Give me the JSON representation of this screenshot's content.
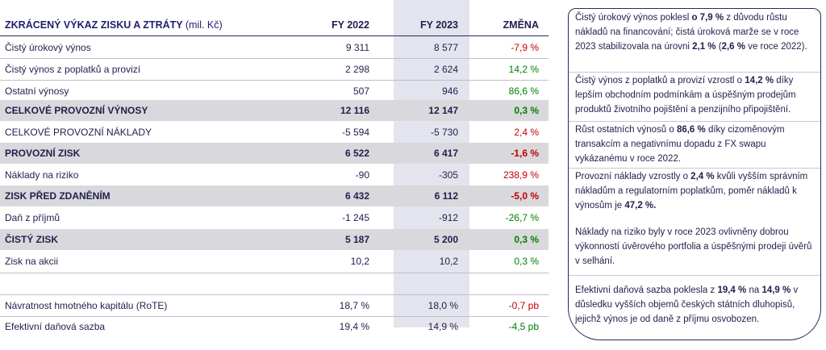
{
  "table": {
    "title": "ZKRÁCENÝ VÝKAZ ZISKU A ZTRÁTY",
    "unit": "(mil. Kč)",
    "col_fy2022": "FY 2022",
    "col_fy2023": "FY 2023",
    "col_change": "ZMĚNA",
    "rows": [
      {
        "label": "Čistý úrokový výnos",
        "fy2022": "9 311",
        "fy2023": "8 577",
        "change": "-7,9 %"
      },
      {
        "label": "Čistý výnos z poplatků a provizí",
        "fy2022": "2 298",
        "fy2023": "2 624",
        "change": "14,2 %"
      },
      {
        "label": "Ostatní výnosy",
        "fy2022": "507",
        "fy2023": "946",
        "change": "86,6 %"
      },
      {
        "label": "CELKOVÉ PROVOZNÍ VÝNOSY",
        "fy2022": "12 116",
        "fy2023": "12 147",
        "change": "0,3 %"
      },
      {
        "label": "CELKOVÉ PROVOZNÍ NÁKLADY",
        "fy2022": "-5 594",
        "fy2023": "-5 730",
        "change": "2,4 %"
      },
      {
        "label": "PROVOZNÍ ZISK",
        "fy2022": "6 522",
        "fy2023": "6 417",
        "change": "-1,6 %"
      },
      {
        "label": "Náklady na riziko",
        "fy2022": "-90",
        "fy2023": "-305",
        "change": "238,9 %"
      },
      {
        "label": "ZISK PŘED ZDANĚNÍM",
        "fy2022": "6 432",
        "fy2023": "6 112",
        "change": "-5,0 %"
      },
      {
        "label": "Daň z příjmů",
        "fy2022": "-1 245",
        "fy2023": "-912",
        "change": "-26,7 %"
      },
      {
        "label": "ČISTÝ ZISK",
        "fy2022": "5 187",
        "fy2023": "5 200",
        "change": "0,3 %"
      },
      {
        "label": "Zisk na akcii",
        "fy2022": "10,2",
        "fy2023": "10,2",
        "change": "0,3 %"
      },
      {
        "label": "Návratnost hmotného kapitálu (RoTE)",
        "fy2022": "18,7 %",
        "fy2023": "18,0 %",
        "change": "-0,7 pb"
      },
      {
        "label": "Efektivní daňová sazba",
        "fy2022": "19,4 %",
        "fy2023": "14,9 %",
        "change": "-4,5 pb"
      }
    ]
  },
  "notes": {
    "n1": [
      "Čistý úrokový výnos poklesl ",
      "o 7,9 %",
      " z důvodu růstu nákladů na financování; čistá úroková marže se v roce 2023 stabilizovala na úrovni ",
      "2,1 %",
      " (",
      "2,6 %",
      " ve roce 2022)."
    ],
    "n2": [
      "Čistý výnos z poplatků a provizí vzrostl o ",
      "14,2 %",
      " díky lepším obchodním podmínkám a úspěšným prodejům produktů životního pojištění a penzijního připojištění."
    ],
    "n3": [
      "Růst ostatních výnosů o ",
      "86,6 %",
      " díky cizoměnovým transakcím a negativnímu dopadu z FX swapu vykázanému v roce 2022."
    ],
    "n4": [
      "Provozní náklady vzrostly o ",
      "2,4 %",
      " kvůli vyšším správním nákladům a regulatorním poplatkům, poměr nákladů k výnosům je ",
      "47,2 %.",
      ""
    ],
    "n5": [
      "Náklady na riziko byly v roce 2023 ovlivněny dobrou výkonností úvěrového portfolia a úspěšnými prodeji úvěrů v selhání."
    ],
    "n6": [
      "Efektivní daňová sazba poklesla z ",
      "19,4 %",
      " na ",
      "14,9 %",
      " v důsledku vyšších objemů českých státních dluhopisů, jejichž výnos je od daně z příjmu osvobozen."
    ]
  },
  "colors": {
    "negative": "#c00000",
    "positive": "#008000",
    "accent": "#1f1f6e",
    "band": "#d9d9dd",
    "shade": "#e4e4ee"
  }
}
